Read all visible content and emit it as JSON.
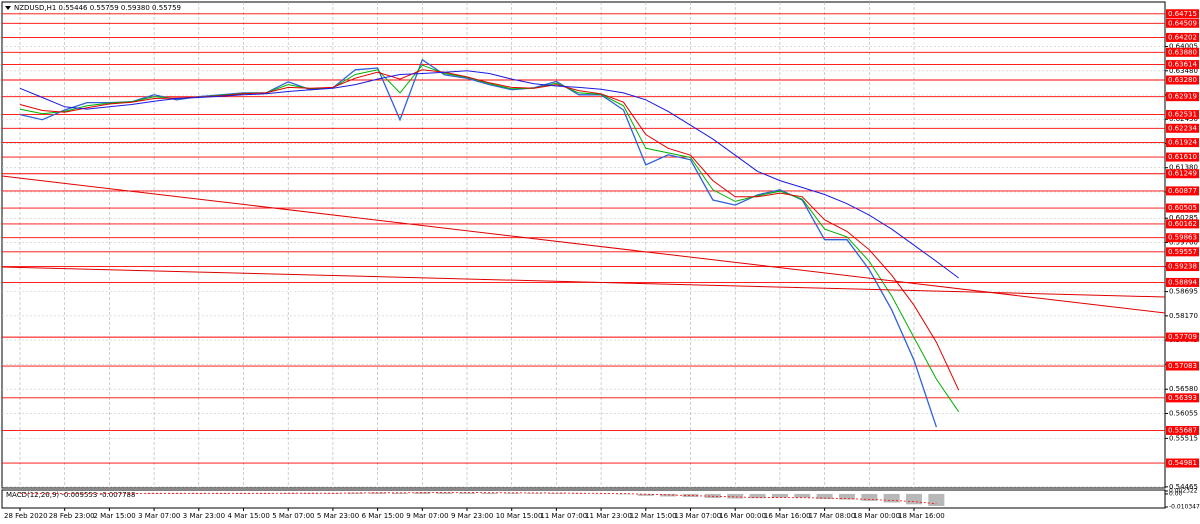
{
  "chart_data": [
    {
      "type": "line",
      "title": "NZDUSD,H1  0.55446 0.55759 0.59380 0.55759",
      "categories": [
        "28 Feb 2020",
        null,
        "28 Feb 23:00",
        null,
        "2 Mar 15:00",
        null,
        "3 Mar 07:00",
        null,
        "3 Mar 23:00",
        null,
        "4 Mar 15:00",
        null,
        "5 Mar 07:00",
        null,
        "5 Mar 23:00",
        null,
        "6 Mar 15:00",
        null,
        "9 Mar 07:00",
        null,
        "9 Mar 23:00",
        null,
        "10 Mar 15:00",
        null,
        "11 Mar 07:00",
        null,
        "11 Mar 23:00",
        null,
        "12 Mar 15:00",
        null,
        "13 Mar 07:00",
        null,
        "16 Mar 00:00",
        null,
        "16 Mar 16:00",
        null,
        "17 Mar 08:00",
        null,
        "18 Mar 00:00",
        null,
        "18 Mar 16:00",
        null,
        null
      ],
      "series": [
        {
          "color": "#2f62d8",
          "values": [
            0.6253,
            0.6242,
            0.6263,
            0.6279,
            0.6279,
            0.6281,
            0.6296,
            0.6285,
            0.6292,
            0.6296,
            0.63,
            0.63,
            0.6324,
            0.6307,
            0.6311,
            0.635,
            0.6354,
            0.6242,
            0.6372,
            0.6339,
            0.6332,
            0.6318,
            0.6307,
            0.6311,
            0.6325,
            0.6296,
            0.6296,
            0.6263,
            0.6144,
            0.6166,
            0.6155,
            0.6068,
            0.6057,
            0.6079,
            0.609,
            0.6068,
            0.5982,
            0.5982,
            0.5917,
            0.583,
            0.5721,
            0.55759,
            null
          ]
        },
        {
          "color": "#00b000",
          "values": [
            0.6265,
            0.6255,
            0.626,
            0.6272,
            0.6278,
            0.6281,
            0.6292,
            0.6288,
            0.6291,
            0.6295,
            0.6299,
            0.63,
            0.6318,
            0.6309,
            0.6311,
            0.634,
            0.635,
            0.63,
            0.636,
            0.6342,
            0.6334,
            0.632,
            0.6309,
            0.631,
            0.6321,
            0.63,
            0.6297,
            0.6272,
            0.618,
            0.617,
            0.616,
            0.609,
            0.6065,
            0.6077,
            0.6087,
            0.607,
            0.6005,
            0.5988,
            0.5935,
            0.586,
            0.577,
            0.568,
            0.5609
          ]
        },
        {
          "color": "#e00000",
          "values": [
            0.6275,
            0.6262,
            0.6258,
            0.6268,
            0.6276,
            0.628,
            0.6288,
            0.6289,
            0.6291,
            0.6294,
            0.6298,
            0.63,
            0.6312,
            0.631,
            0.6312,
            0.6332,
            0.6345,
            0.633,
            0.635,
            0.6345,
            0.6335,
            0.6322,
            0.6312,
            0.631,
            0.6318,
            0.6305,
            0.6298,
            0.628,
            0.621,
            0.618,
            0.6165,
            0.611,
            0.6075,
            0.6075,
            0.6083,
            0.6075,
            0.6025,
            0.6,
            0.596,
            0.5905,
            0.584,
            0.576,
            0.5656
          ]
        },
        {
          "color": "#1a1ae0",
          "values": [
            0.631,
            0.629,
            0.627,
            0.6265,
            0.627,
            0.6275,
            0.6282,
            0.6288,
            0.629,
            0.6293,
            0.6296,
            0.6298,
            0.6303,
            0.6307,
            0.631,
            0.6318,
            0.633,
            0.634,
            0.6342,
            0.6345,
            0.6348,
            0.6342,
            0.633,
            0.632,
            0.6315,
            0.6312,
            0.6308,
            0.63,
            0.6285,
            0.626,
            0.623,
            0.62,
            0.6165,
            0.613,
            0.611,
            0.6095,
            0.608,
            0.606,
            0.6035,
            0.6005,
            0.597,
            0.5935,
            0.5899
          ]
        }
      ],
      "ylim": [
        0.5444,
        0.6497
      ],
      "yticks": [
        0.64005,
        {
          "value": 0.6348,
          "label": "0.63480"
        },
        0.62955,
        {
          "value": 0.6243,
          "label": "0.62430"
        },
        0.61905,
        {
          "value": 0.6138,
          "label": "0.61380"
        },
        0.60855,
        0.60285,
        {
          "value": 0.5976,
          "label": "0.59760"
        },
        0.59235,
        0.58695,
        {
          "value": 0.5817,
          "label": "0.58170"
        },
        0.57645,
        {
          "value": 0.5712,
          "label": "0.57120"
        },
        {
          "value": 0.5658,
          "label": "0.56580"
        },
        0.56055,
        0.55515,
        0.54465
      ],
      "levels": [
        0.64715,
        0.64509,
        0.64202,
        {
          "value": 0.6388,
          "label": "0.63880"
        },
        0.63614,
        {
          "value": 0.6328,
          "label": "0.63280"
        },
        0.62919,
        0.62531,
        0.62234,
        0.61924,
        {
          "value": 0.6161,
          "label": "0.61610"
        },
        0.61249,
        0.60877,
        0.60505,
        0.60162,
        0.59863,
        0.59557,
        0.59238,
        0.58894,
        0.57709,
        0.57083,
        0.56393,
        0.55687,
        0.54981
      ],
      "level_color": "#ff0000",
      "grid": true
    },
    {
      "type": "bar",
      "title": "MACD(12,26,9) -0.009553 -0.007788",
      "values": [
        0.0004,
        0.0002,
        0.0002,
        0.0004,
        0.0005,
        0.0005,
        0.0006,
        0.0005,
        0.0005,
        0.0005,
        0.0005,
        0.0005,
        0.0007,
        0.0006,
        0.0006,
        0.001,
        0.0012,
        0.0008,
        0.0014,
        0.0012,
        0.001,
        0.0008,
        0.0006,
        0.0005,
        0.0006,
        0.0004,
        0.0002,
        -0.0002,
        -0.0015,
        -0.002,
        -0.0024,
        -0.0032,
        -0.0036,
        -0.0034,
        -0.003,
        -0.003,
        -0.004,
        -0.0045,
        -0.0055,
        -0.0068,
        -0.0082,
        -0.009553,
        null
      ],
      "color": "#b8b8b8",
      "series": [
        {
          "color": "#ff0000",
          "values": [
            0.0003,
            0.0003,
            0.0003,
            0.0003,
            0.0004,
            0.0004,
            0.0005,
            0.0005,
            0.0005,
            0.0005,
            0.0005,
            0.0005,
            0.0006,
            0.0006,
            0.0006,
            0.0007,
            0.0009,
            0.0009,
            0.001,
            0.0011,
            0.0011,
            0.001,
            0.0009,
            0.0008,
            0.0007,
            0.0006,
            0.0005,
            0.0003,
            -0.0002,
            -0.0008,
            -0.0013,
            -0.0019,
            -0.0024,
            -0.0028,
            -0.0029,
            -0.003,
            -0.0033,
            -0.0037,
            -0.0043,
            -0.0051,
            -0.0061,
            -0.007788,
            null
          ]
        }
      ],
      "ylim": [
        -0.010347,
        0.002322
      ],
      "yticks": [
        0.002322,
        {
          "value": 0,
          "label": "0.00"
        },
        -0.010347
      ]
    }
  ]
}
